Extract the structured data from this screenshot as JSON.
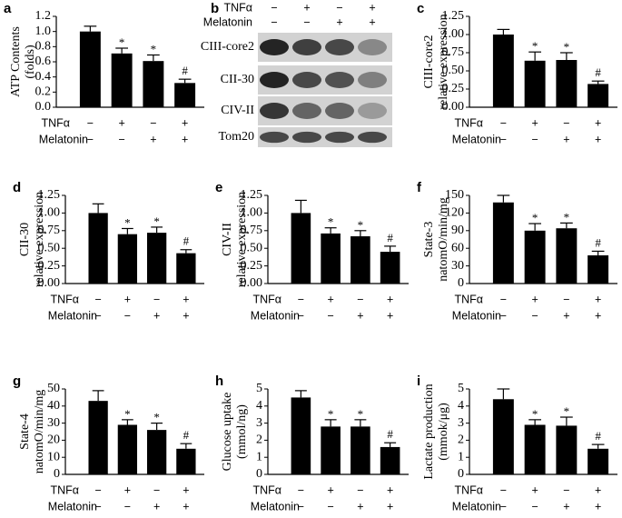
{
  "chart_data": [
    {
      "type": "bar",
      "panel_label": "a",
      "ylabel": [
        "ATP Contents",
        "(folds)"
      ],
      "ylim": [
        0,
        1.2
      ],
      "yticks": [
        {
          "value": 0,
          "label": "0.0"
        },
        0.2,
        0.4,
        0.6,
        0.8,
        {
          "value": 1,
          "label": "1.0"
        },
        1.2
      ],
      "values": [
        1.0,
        0.71,
        0.61,
        0.32
      ],
      "errors": [
        0.07,
        0.07,
        0.08,
        0.05
      ],
      "annotations": [
        null,
        "*",
        "*",
        "#"
      ],
      "color": "#000000",
      "conditions": [
        {
          "name": "TNFα",
          "marks": [
            "−",
            "+",
            "−",
            "+"
          ]
        },
        {
          "name": "Melatonin",
          "marks": [
            "−",
            "−",
            "+",
            "+"
          ]
        }
      ]
    },
    {
      "type": "bar",
      "panel_label": "c",
      "ylabel": [
        "CIII-core2",
        "relative expression"
      ],
      "ylim": [
        0,
        1.25
      ],
      "yticks": [
        {
          "value": 0,
          "label": "0.00"
        },
        0.25,
        {
          "value": 0.5,
          "label": "0.50"
        },
        0.75,
        {
          "value": 1,
          "label": "1.00"
        },
        1.25
      ],
      "values": [
        1.0,
        0.64,
        0.65,
        0.32
      ],
      "errors": [
        0.07,
        0.12,
        0.1,
        0.04
      ],
      "annotations": [
        null,
        "*",
        "*",
        "#"
      ],
      "color": "#000000",
      "conditions": [
        {
          "name": "TNFα",
          "marks": [
            "−",
            "+",
            "−",
            "+"
          ]
        },
        {
          "name": "Melatonin",
          "marks": [
            "−",
            "−",
            "+",
            "+"
          ]
        }
      ]
    },
    {
      "type": "bar",
      "panel_label": "d",
      "ylabel": [
        "CII-30",
        "relative expression"
      ],
      "ylim": [
        0,
        1.25
      ],
      "yticks": [
        {
          "value": 0,
          "label": "0.00"
        },
        0.25,
        {
          "value": 0.5,
          "label": "0.50"
        },
        0.75,
        {
          "value": 1,
          "label": "1.00"
        },
        1.25
      ],
      "values": [
        1.0,
        0.7,
        0.72,
        0.43
      ],
      "errors": [
        0.13,
        0.08,
        0.08,
        0.05
      ],
      "annotations": [
        null,
        "*",
        "*",
        "#"
      ],
      "color": "#000000",
      "conditions": [
        {
          "name": "TNFα",
          "marks": [
            "−",
            "+",
            "−",
            "+"
          ]
        },
        {
          "name": "Melatonin",
          "marks": [
            "−",
            "−",
            "+",
            "+"
          ]
        }
      ]
    },
    {
      "type": "bar",
      "panel_label": "e",
      "ylabel": [
        "CIV-II",
        "relative expression"
      ],
      "ylim": [
        0,
        1.25
      ],
      "yticks": [
        {
          "value": 0,
          "label": "0.00"
        },
        0.25,
        {
          "value": 0.5,
          "label": "0.50"
        },
        0.75,
        {
          "value": 1,
          "label": "1.00"
        },
        1.25
      ],
      "values": [
        1.0,
        0.71,
        0.67,
        0.45
      ],
      "errors": [
        0.18,
        0.08,
        0.08,
        0.08
      ],
      "annotations": [
        null,
        "*",
        "*",
        "#"
      ],
      "color": "#000000",
      "conditions": [
        {
          "name": "TNFα",
          "marks": [
            "−",
            "+",
            "−",
            "+"
          ]
        },
        {
          "name": "Melatonin",
          "marks": [
            "−",
            "−",
            "+",
            "+"
          ]
        }
      ]
    },
    {
      "type": "bar",
      "panel_label": "f",
      "ylabel": [
        "State-3",
        "natomO/min/mg"
      ],
      "ylim": [
        0,
        150
      ],
      "yticks": [
        0,
        30,
        60,
        90,
        120,
        150
      ],
      "values": [
        138,
        90,
        94,
        48
      ],
      "errors": [
        12,
        12,
        9,
        7
      ],
      "annotations": [
        null,
        "*",
        "*",
        "#"
      ],
      "color": "#000000",
      "conditions": [
        {
          "name": "TNFα",
          "marks": [
            "−",
            "+",
            "−",
            "+"
          ]
        },
        {
          "name": "Melatonin",
          "marks": [
            "−",
            "−",
            "+",
            "+"
          ]
        }
      ]
    },
    {
      "type": "bar",
      "panel_label": "g",
      "ylabel": [
        "State-4",
        "natomO/min/mg"
      ],
      "ylim": [
        0,
        50
      ],
      "yticks": [
        0,
        10,
        20,
        30,
        40,
        50
      ],
      "values": [
        43,
        29,
        26,
        15
      ],
      "errors": [
        6,
        3,
        4,
        3
      ],
      "annotations": [
        null,
        "*",
        "*",
        "#"
      ],
      "color": "#000000",
      "conditions": [
        {
          "name": "TNFα",
          "marks": [
            "−",
            "+",
            "−",
            "+"
          ]
        },
        {
          "name": "Melatonin",
          "marks": [
            "−",
            "−",
            "+",
            "+"
          ]
        }
      ]
    },
    {
      "type": "bar",
      "panel_label": "h",
      "ylabel": [
        "Glucose uptake",
        "(mmol/ng)"
      ],
      "ylim": [
        0,
        5
      ],
      "yticks": [
        0,
        1,
        2,
        3,
        4,
        5
      ],
      "values": [
        4.5,
        2.8,
        2.8,
        1.6
      ],
      "errors": [
        0.4,
        0.4,
        0.4,
        0.25
      ],
      "annotations": [
        null,
        "*",
        "*",
        "#"
      ],
      "color": "#000000",
      "conditions": [
        {
          "name": "TNFα",
          "marks": [
            "−",
            "+",
            "−",
            "+"
          ]
        },
        {
          "name": "Melatonin",
          "marks": [
            "−",
            "−",
            "+",
            "+"
          ]
        }
      ]
    },
    {
      "type": "bar",
      "panel_label": "i",
      "ylabel": [
        "Lactate production",
        "(mmok/μg)"
      ],
      "ylim": [
        0,
        5
      ],
      "yticks": [
        0,
        1,
        2,
        3,
        4,
        5
      ],
      "values": [
        4.4,
        2.9,
        2.85,
        1.5
      ],
      "errors": [
        0.6,
        0.3,
        0.5,
        0.25
      ],
      "annotations": [
        null,
        "*",
        "*",
        "#"
      ],
      "color": "#000000",
      "conditions": [
        {
          "name": "TNFα",
          "marks": [
            "−",
            "+",
            "−",
            "+"
          ]
        },
        {
          "name": "Melatonin",
          "marks": [
            "−",
            "−",
            "+",
            "+"
          ]
        }
      ]
    }
  ],
  "blot": {
    "panel_label": "b",
    "conditions": [
      {
        "name": "TNFα",
        "marks": [
          "−",
          "+",
          "−",
          "+"
        ]
      },
      {
        "name": "Melatonin",
        "marks": [
          "−",
          "−",
          "+",
          "+"
        ]
      }
    ],
    "bands": [
      "CIII-core2",
      "CII-30",
      "CIV-II",
      "Tom20"
    ]
  }
}
